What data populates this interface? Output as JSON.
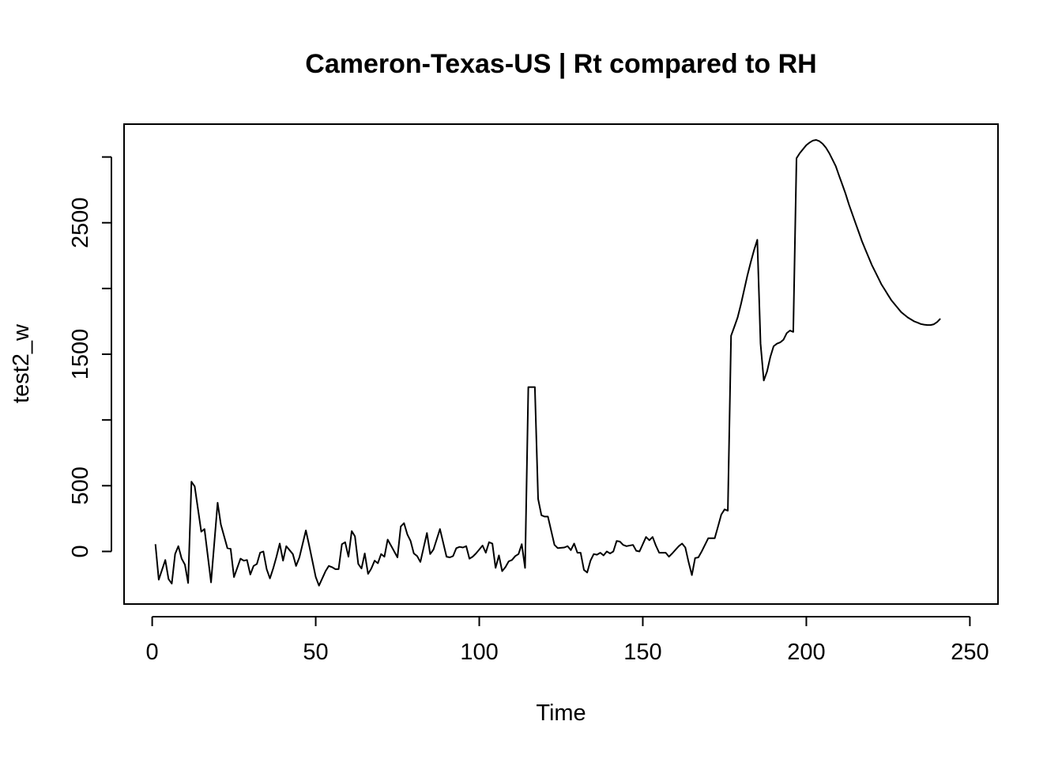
{
  "chart_data": {
    "type": "line",
    "title": "Cameron-Texas-US | Rt compared to RH",
    "xlabel": "Time",
    "ylabel": "test2_w",
    "xlim": [
      -8.6,
      258.6
    ],
    "ylim": [
      -400,
      3250
    ],
    "xticks": [
      0,
      50,
      100,
      150,
      200,
      250
    ],
    "yticks": [
      0,
      500,
      1500,
      2500
    ],
    "grid": false,
    "series": [
      {
        "color": "#000000",
        "points": [
          [
            1,
            55
          ],
          [
            2,
            -215
          ],
          [
            4,
            -65
          ],
          [
            5,
            -210
          ],
          [
            6,
            -245
          ],
          [
            7,
            -20
          ],
          [
            8,
            40
          ],
          [
            9,
            -55
          ],
          [
            10,
            -100
          ],
          [
            11,
            -240
          ],
          [
            12,
            530
          ],
          [
            13,
            495
          ],
          [
            15,
            150
          ],
          [
            16,
            170
          ],
          [
            18,
            -235
          ],
          [
            20,
            370
          ],
          [
            21,
            205
          ],
          [
            23,
            25
          ],
          [
            24,
            20
          ],
          [
            25,
            -195
          ],
          [
            27,
            -55
          ],
          [
            28,
            -70
          ],
          [
            29,
            -65
          ],
          [
            30,
            -175
          ],
          [
            31,
            -110
          ],
          [
            32,
            -95
          ],
          [
            33,
            -10
          ],
          [
            34,
            0
          ],
          [
            35,
            -135
          ],
          [
            36,
            -205
          ],
          [
            37,
            -130
          ],
          [
            38,
            -40
          ],
          [
            39,
            60
          ],
          [
            40,
            -70
          ],
          [
            41,
            40
          ],
          [
            43,
            -20
          ],
          [
            44,
            -110
          ],
          [
            45,
            -45
          ],
          [
            47,
            160
          ],
          [
            48,
            45
          ],
          [
            50,
            -195
          ],
          [
            51,
            -260
          ],
          [
            53,
            -150
          ],
          [
            54,
            -110
          ],
          [
            55,
            -120
          ],
          [
            56,
            -135
          ],
          [
            57,
            -135
          ],
          [
            58,
            55
          ],
          [
            59,
            70
          ],
          [
            60,
            -40
          ],
          [
            61,
            155
          ],
          [
            62,
            115
          ],
          [
            63,
            -95
          ],
          [
            64,
            -130
          ],
          [
            65,
            -15
          ],
          [
            66,
            -170
          ],
          [
            67,
            -130
          ],
          [
            68,
            -70
          ],
          [
            69,
            -90
          ],
          [
            70,
            -20
          ],
          [
            71,
            -40
          ],
          [
            72,
            90
          ],
          [
            73,
            45
          ],
          [
            75,
            -45
          ],
          [
            76,
            190
          ],
          [
            77,
            215
          ],
          [
            78,
            130
          ],
          [
            79,
            80
          ],
          [
            80,
            -15
          ],
          [
            81,
            -35
          ],
          [
            82,
            -80
          ],
          [
            84,
            140
          ],
          [
            85,
            -20
          ],
          [
            86,
            15
          ],
          [
            88,
            170
          ],
          [
            90,
            -40
          ],
          [
            91,
            -45
          ],
          [
            92,
            -35
          ],
          [
            93,
            25
          ],
          [
            94,
            35
          ],
          [
            95,
            30
          ],
          [
            96,
            40
          ],
          [
            97,
            -55
          ],
          [
            98,
            -40
          ],
          [
            99,
            -15
          ],
          [
            101,
            45
          ],
          [
            102,
            -10
          ],
          [
            103,
            70
          ],
          [
            104,
            60
          ],
          [
            105,
            -125
          ],
          [
            106,
            -30
          ],
          [
            107,
            -150
          ],
          [
            108,
            -120
          ],
          [
            109,
            -75
          ],
          [
            110,
            -65
          ],
          [
            111,
            -35
          ],
          [
            112,
            -20
          ],
          [
            113,
            55
          ],
          [
            114,
            -125
          ],
          [
            115,
            1250
          ],
          [
            117,
            1250
          ],
          [
            118,
            400
          ],
          [
            119,
            275
          ],
          [
            120,
            265
          ],
          [
            121,
            265
          ],
          [
            123,
            50
          ],
          [
            124,
            25
          ],
          [
            126,
            30
          ],
          [
            127,
            40
          ],
          [
            128,
            10
          ],
          [
            129,
            60
          ],
          [
            130,
            -10
          ],
          [
            131,
            -10
          ],
          [
            132,
            -140
          ],
          [
            133,
            -160
          ],
          [
            134,
            -70
          ],
          [
            135,
            -20
          ],
          [
            136,
            -25
          ],
          [
            137,
            -10
          ],
          [
            138,
            -30
          ],
          [
            139,
            0
          ],
          [
            140,
            -15
          ],
          [
            141,
            0
          ],
          [
            142,
            80
          ],
          [
            143,
            75
          ],
          [
            144,
            50
          ],
          [
            145,
            40
          ],
          [
            147,
            50
          ],
          [
            148,
            5
          ],
          [
            149,
            0
          ],
          [
            151,
            110
          ],
          [
            152,
            85
          ],
          [
            153,
            110
          ],
          [
            154,
            45
          ],
          [
            155,
            -10
          ],
          [
            157,
            -10
          ],
          [
            158,
            -40
          ],
          [
            159,
            -15
          ],
          [
            161,
            40
          ],
          [
            162,
            60
          ],
          [
            163,
            30
          ],
          [
            164,
            -80
          ],
          [
            165,
            -180
          ],
          [
            166,
            -50
          ],
          [
            167,
            -45
          ],
          [
            168,
            0
          ],
          [
            170,
            100
          ],
          [
            171,
            100
          ],
          [
            172,
            100
          ],
          [
            173,
            190
          ],
          [
            174,
            280
          ],
          [
            175,
            320
          ],
          [
            176,
            310
          ],
          [
            177,
            1640
          ],
          [
            178,
            1710
          ],
          [
            179,
            1780
          ],
          [
            180,
            1880
          ],
          [
            181,
            1990
          ],
          [
            182,
            2100
          ],
          [
            183,
            2200
          ],
          [
            184,
            2290
          ],
          [
            185,
            2370
          ],
          [
            186,
            1580
          ],
          [
            187,
            1300
          ],
          [
            188,
            1370
          ],
          [
            189,
            1480
          ],
          [
            190,
            1560
          ],
          [
            191,
            1580
          ],
          [
            192,
            1590
          ],
          [
            193,
            1610
          ],
          [
            194,
            1660
          ],
          [
            195,
            1680
          ],
          [
            196,
            1670
          ],
          [
            197,
            2990
          ],
          [
            198,
            3030
          ],
          [
            199,
            3060
          ],
          [
            200,
            3090
          ],
          [
            201,
            3110
          ],
          [
            202,
            3125
          ],
          [
            203,
            3130
          ],
          [
            204,
            3120
          ],
          [
            205,
            3100
          ],
          [
            206,
            3070
          ],
          [
            207,
            3030
          ],
          [
            208,
            2980
          ],
          [
            209,
            2930
          ],
          [
            210,
            2860
          ],
          [
            211,
            2790
          ],
          [
            212,
            2720
          ],
          [
            213,
            2640
          ],
          [
            214,
            2570
          ],
          [
            215,
            2500
          ],
          [
            216,
            2430
          ],
          [
            217,
            2360
          ],
          [
            218,
            2300
          ],
          [
            219,
            2240
          ],
          [
            220,
            2180
          ],
          [
            221,
            2130
          ],
          [
            222,
            2080
          ],
          [
            223,
            2030
          ],
          [
            224,
            1990
          ],
          [
            225,
            1950
          ],
          [
            226,
            1910
          ],
          [
            227,
            1880
          ],
          [
            228,
            1850
          ],
          [
            229,
            1820
          ],
          [
            230,
            1800
          ],
          [
            231,
            1780
          ],
          [
            232,
            1765
          ],
          [
            233,
            1750
          ],
          [
            234,
            1740
          ],
          [
            235,
            1730
          ],
          [
            236,
            1725
          ],
          [
            237,
            1722
          ],
          [
            238,
            1722
          ],
          [
            239,
            1728
          ],
          [
            240,
            1745
          ],
          [
            241,
            1770
          ]
        ]
      }
    ]
  }
}
